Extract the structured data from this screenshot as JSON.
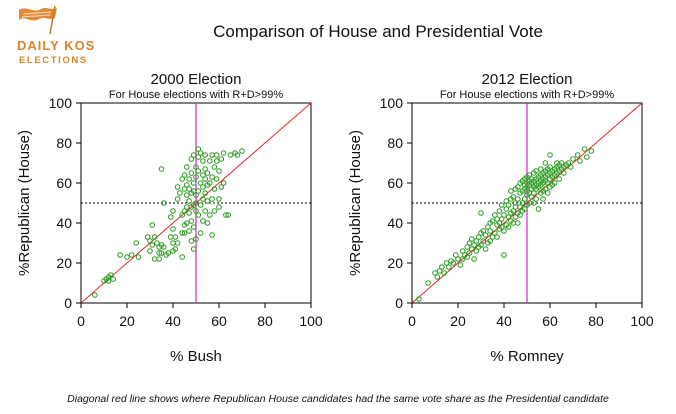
{
  "logo": {
    "line1": "DAILY KOS",
    "line2": "ELECTIONS",
    "color": "#d9832b"
  },
  "title": "Comparison of House and Presidential Vote",
  "footnote": "Diagonal red line shows where Republican House candidates had the same vote share as the Presidential candidate",
  "colors": {
    "points": "#2a9a1e",
    "diagonal": "#e8262a",
    "vertical": "#e020e0",
    "hline": "#000000"
  },
  "chart_data": [
    {
      "type": "scatter",
      "title": "2000 Election",
      "subtitle": "For House elections with R+D>99%",
      "xlabel": "% Bush",
      "ylabel": "%Republican (House)",
      "xlim": [
        0,
        100
      ],
      "ylim": [
        0,
        100
      ],
      "xticks": [
        "0",
        "20",
        "40",
        "60",
        "80",
        "100"
      ],
      "yticks": [
        "0",
        "20",
        "40",
        "60",
        "80",
        "100"
      ],
      "vline": 50,
      "hline": 50,
      "diagonal": true,
      "points": [
        [
          6,
          4
        ],
        [
          10,
          11
        ],
        [
          11,
          12
        ],
        [
          12,
          13
        ],
        [
          13,
          14
        ],
        [
          14,
          12
        ],
        [
          12,
          11
        ],
        [
          17,
          24
        ],
        [
          20,
          23
        ],
        [
          22,
          24
        ],
        [
          24,
          30
        ],
        [
          25,
          23
        ],
        [
          29,
          33
        ],
        [
          30,
          26
        ],
        [
          30,
          31
        ],
        [
          31,
          39
        ],
        [
          31,
          29
        ],
        [
          32,
          22
        ],
        [
          32,
          33
        ],
        [
          33,
          30
        ],
        [
          34,
          28
        ],
        [
          34,
          22
        ],
        [
          34,
          25
        ],
        [
          35,
          29
        ],
        [
          35,
          25
        ],
        [
          35,
          67
        ],
        [
          36,
          28
        ],
        [
          36,
          50
        ],
        [
          37,
          24
        ],
        [
          38,
          25
        ],
        [
          39,
          33
        ],
        [
          39,
          43
        ],
        [
          40,
          30
        ],
        [
          40,
          37
        ],
        [
          40,
          46
        ],
        [
          40,
          26
        ],
        [
          41,
          33
        ],
        [
          41,
          27
        ],
        [
          42,
          52
        ],
        [
          42,
          58
        ],
        [
          42,
          30
        ],
        [
          43,
          55
        ],
        [
          44,
          62
        ],
        [
          44,
          44
        ],
        [
          44,
          35
        ],
        [
          44,
          23
        ],
        [
          45,
          39
        ],
        [
          45,
          46
        ],
        [
          45,
          57
        ],
        [
          45,
          64
        ],
        [
          45,
          35
        ],
        [
          46,
          40
        ],
        [
          46,
          48
        ],
        [
          46,
          54
        ],
        [
          46,
          59
        ],
        [
          46,
          68
        ],
        [
          47,
          51
        ],
        [
          47,
          57
        ],
        [
          47,
          62
        ],
        [
          47,
          36
        ],
        [
          47,
          45
        ],
        [
          48,
          48
        ],
        [
          48,
          55
        ],
        [
          48,
          65
        ],
        [
          48,
          72
        ],
        [
          48,
          31
        ],
        [
          48,
          41
        ],
        [
          49,
          49
        ],
        [
          49,
          56
        ],
        [
          49,
          60
        ],
        [
          49,
          74
        ],
        [
          49,
          27
        ],
        [
          49,
          38
        ],
        [
          50,
          50
        ],
        [
          50,
          54
        ],
        [
          50,
          63
        ],
        [
          50,
          68
        ],
        [
          50,
          46
        ],
        [
          50,
          32
        ],
        [
          51,
          77
        ],
        [
          51,
          56
        ],
        [
          51,
          66
        ],
        [
          51,
          73
        ],
        [
          51,
          44
        ],
        [
          52,
          60
        ],
        [
          52,
          75
        ],
        [
          52,
          49
        ],
        [
          52,
          35
        ],
        [
          53,
          58
        ],
        [
          53,
          64
        ],
        [
          53,
          71
        ],
        [
          53,
          41
        ],
        [
          53,
          52
        ],
        [
          54,
          55
        ],
        [
          54,
          62
        ],
        [
          54,
          67
        ],
        [
          54,
          46
        ],
        [
          54,
          74
        ],
        [
          55,
          59
        ],
        [
          55,
          65
        ],
        [
          55,
          40
        ],
        [
          55,
          51
        ],
        [
          56,
          71
        ],
        [
          56,
          60
        ],
        [
          56,
          44
        ],
        [
          57,
          63
        ],
        [
          57,
          74
        ],
        [
          57,
          52
        ],
        [
          57,
          34
        ],
        [
          58,
          57
        ],
        [
          58,
          68
        ],
        [
          58,
          46
        ],
        [
          59,
          71
        ],
        [
          59,
          62
        ],
        [
          59,
          74
        ],
        [
          60,
          52
        ],
        [
          60,
          66
        ],
        [
          60,
          48
        ],
        [
          61,
          72
        ],
        [
          61,
          58
        ],
        [
          62,
          75
        ],
        [
          62,
          60
        ],
        [
          63,
          44
        ],
        [
          64,
          44
        ],
        [
          65,
          74
        ],
        [
          67,
          75
        ],
        [
          68,
          74
        ],
        [
          70,
          76
        ]
      ]
    },
    {
      "type": "scatter",
      "title": "2012 Election",
      "subtitle": "For House elections with R+D>99%",
      "xlabel": "% Romney",
      "ylabel": "%Republican (House)",
      "xlim": [
        0,
        100
      ],
      "ylim": [
        0,
        100
      ],
      "xticks": [
        "0",
        "20",
        "40",
        "60",
        "80",
        "100"
      ],
      "yticks": [
        "0",
        "20",
        "40",
        "60",
        "80",
        "100"
      ],
      "vline": 50,
      "hline": 50,
      "diagonal": true,
      "points": [
        [
          3,
          2
        ],
        [
          7,
          10
        ],
        [
          10,
          15
        ],
        [
          11,
          13
        ],
        [
          12,
          16
        ],
        [
          13,
          18
        ],
        [
          14,
          15
        ],
        [
          15,
          20
        ],
        [
          16,
          18
        ],
        [
          17,
          21
        ],
        [
          18,
          20
        ],
        [
          19,
          24
        ],
        [
          20,
          22
        ],
        [
          21,
          19
        ],
        [
          22,
          26
        ],
        [
          22,
          22
        ],
        [
          23,
          24
        ],
        [
          24,
          28
        ],
        [
          24,
          23
        ],
        [
          25,
          30
        ],
        [
          25,
          25
        ],
        [
          26,
          27
        ],
        [
          26,
          32
        ],
        [
          27,
          29
        ],
        [
          27,
          22
        ],
        [
          28,
          31
        ],
        [
          28,
          26
        ],
        [
          29,
          33
        ],
        [
          29,
          28
        ],
        [
          30,
          35
        ],
        [
          30,
          29
        ],
        [
          30,
          45
        ],
        [
          31,
          31
        ],
        [
          31,
          36
        ],
        [
          32,
          34
        ],
        [
          32,
          27
        ],
        [
          33,
          38
        ],
        [
          33,
          30
        ],
        [
          34,
          36
        ],
        [
          34,
          40
        ],
        [
          34,
          31
        ],
        [
          35,
          33
        ],
        [
          35,
          41
        ],
        [
          36,
          44
        ],
        [
          36,
          35
        ],
        [
          37,
          39
        ],
        [
          37,
          42
        ],
        [
          37,
          33
        ],
        [
          38,
          40
        ],
        [
          38,
          46
        ],
        [
          38,
          37
        ],
        [
          39,
          42
        ],
        [
          39,
          49
        ],
        [
          39,
          38
        ],
        [
          40,
          44
        ],
        [
          40,
          36
        ],
        [
          40,
          24
        ],
        [
          41,
          47
        ],
        [
          41,
          39
        ],
        [
          41,
          51
        ],
        [
          42,
          43
        ],
        [
          42,
          38
        ],
        [
          42,
          49
        ],
        [
          43,
          45
        ],
        [
          43,
          52
        ],
        [
          43,
          41
        ],
        [
          43,
          56
        ],
        [
          44,
          46
        ],
        [
          44,
          40
        ],
        [
          44,
          53
        ],
        [
          45,
          50
        ],
        [
          45,
          43
        ],
        [
          45,
          57
        ],
        [
          45,
          48
        ],
        [
          46,
          52
        ],
        [
          46,
          45
        ],
        [
          46,
          58
        ],
        [
          46,
          40
        ],
        [
          47,
          55
        ],
        [
          47,
          48
        ],
        [
          47,
          60
        ],
        [
          47,
          44
        ],
        [
          48,
          56
        ],
        [
          48,
          50
        ],
        [
          48,
          61
        ],
        [
          48,
          46
        ],
        [
          49,
          57
        ],
        [
          49,
          52
        ],
        [
          49,
          62
        ],
        [
          49,
          59
        ],
        [
          49,
          47
        ],
        [
          50,
          58
        ],
        [
          50,
          54
        ],
        [
          50,
          60
        ],
        [
          50,
          63
        ],
        [
          50,
          49
        ],
        [
          50,
          56
        ],
        [
          51,
          59
        ],
        [
          51,
          55
        ],
        [
          51,
          61
        ],
        [
          51,
          64
        ],
        [
          51,
          50
        ],
        [
          52,
          57
        ],
        [
          52,
          60
        ],
        [
          52,
          62
        ],
        [
          52,
          53
        ],
        [
          53,
          58
        ],
        [
          53,
          61
        ],
        [
          53,
          65
        ],
        [
          53,
          55
        ],
        [
          53,
          50
        ],
        [
          54,
          59
        ],
        [
          54,
          62
        ],
        [
          54,
          57
        ],
        [
          54,
          66
        ],
        [
          54,
          52
        ],
        [
          55,
          60
        ],
        [
          55,
          63
        ],
        [
          55,
          58
        ],
        [
          55,
          47
        ],
        [
          56,
          61
        ],
        [
          56,
          64
        ],
        [
          56,
          59
        ],
        [
          56,
          55
        ],
        [
          56,
          67
        ],
        [
          57,
          62
        ],
        [
          57,
          65
        ],
        [
          57,
          60
        ],
        [
          57,
          56
        ],
        [
          57,
          52
        ],
        [
          58,
          63
        ],
        [
          58,
          66
        ],
        [
          58,
          61
        ],
        [
          58,
          57
        ],
        [
          58,
          70
        ],
        [
          59,
          64
        ],
        [
          59,
          60
        ],
        [
          59,
          67
        ],
        [
          59,
          55
        ],
        [
          60,
          65
        ],
        [
          60,
          62
        ],
        [
          60,
          68
        ],
        [
          60,
          58
        ],
        [
          60,
          74
        ],
        [
          61,
          66
        ],
        [
          61,
          63
        ],
        [
          61,
          59
        ],
        [
          62,
          67
        ],
        [
          62,
          64
        ],
        [
          62,
          60
        ],
        [
          63,
          68
        ],
        [
          63,
          65
        ],
        [
          63,
          70
        ],
        [
          64,
          66
        ],
        [
          64,
          69
        ],
        [
          64,
          62
        ],
        [
          65,
          67
        ],
        [
          65,
          70
        ],
        [
          66,
          68
        ],
        [
          66,
          65
        ],
        [
          67,
          69
        ],
        [
          68,
          70
        ],
        [
          69,
          68
        ],
        [
          70,
          72
        ],
        [
          72,
          74
        ],
        [
          73,
          71
        ],
        [
          75,
          77
        ],
        [
          76,
          73
        ],
        [
          78,
          76
        ]
      ]
    }
  ]
}
